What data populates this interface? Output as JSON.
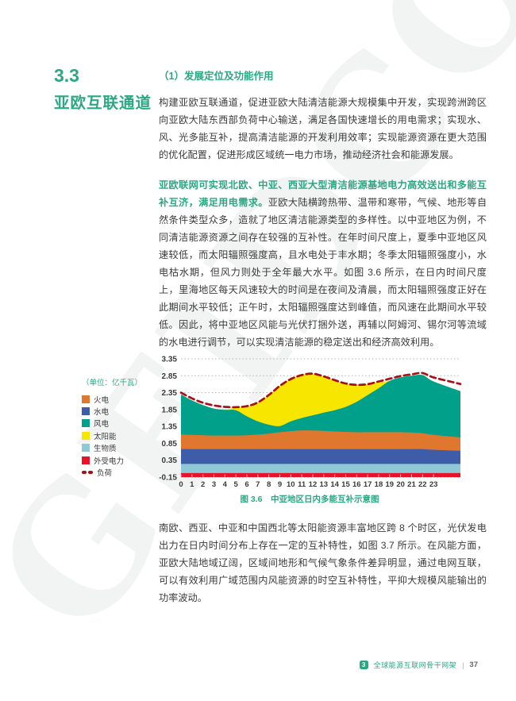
{
  "page": {
    "section_number": "3.3",
    "section_title": "亚欧互联通道",
    "subsection_heading": "（1）发展定位及功能作用",
    "paragraph1": "构建亚欧互联通道，促进亚欧大陆清洁能源大规模集中开发，实现跨洲跨区向亚欧大陆东西部负荷中心输送，满足各国快速增长的用电需求；实现水、风、光多能互补，提高清洁能源的开发利用效率；实现能源资源在更大范围的优化配置，促进形成区域统一电力市场，推动经济社会和能源发展。",
    "paragraph2_lead": "亚欧联网可实现北欧、中亚、西亚大型清洁能源基地电力高效送出和多能互补互济，满足用电需求。",
    "paragraph2_rest": "亚欧大陆横跨热带、温带和寒带，气候、地形等自然条件类型众多，造就了地区清洁能源类型的多样性。以中亚地区为例，不同清洁能源资源之间存在较强的互补性。在年时间尺度上，夏季中亚地区风速较低，而太阳辐照强度高，且水电处于丰水期；冬季太阳辐照强度小，水电枯水期，但风力则处于全年最大水平。如图 3.6 所示，在日内时间尺度上，里海地区每天风速较大的时间是在夜间及清晨，而太阳辐照强度正好在此期间水平较低；正午时，太阳辐照强度达到峰值，而风速在此期间水平较低。因此，将中亚地区风能与光伏打捆外送，再辅以阿姆河、锡尔河等流域的水电进行调节，可以实现清洁能源的稳定送出和经济高效利用。",
    "paragraph3": "南欧、西亚、中亚和中国西北等太阳能资源丰富地区跨 8 个时区，光伏发电出力在日内时间分布上存在一定的互补特性，如图 3.7 所示。在风能方面，亚欧大陆地域辽阔，区域间地形和气候气象条件差异明显，通过电网互联，可以有效利用广域范围内风能资源的时空互补特性，平抑大规模风能输出的功率波动。",
    "watermark": "GEIDCO",
    "accent_color": "#2BA883"
  },
  "footer": {
    "chapter_badge": "3",
    "book_title": "全球能源互联网骨干网架",
    "separator": "|",
    "page_number": "37"
  },
  "chart_data": {
    "type": "area",
    "subtype": "stacked-area with dashed load line",
    "title": "图 3.6　中亚地区日内多能互补示意图",
    "unit_label": "（单位：亿千瓦）",
    "x": [
      0,
      1,
      2,
      3,
      4,
      5,
      6,
      7,
      8,
      9,
      10,
      11,
      12,
      13,
      14,
      15,
      16,
      17,
      18,
      19,
      20,
      21,
      22,
      23
    ],
    "xlabel": "",
    "ylabel": "亿千瓦",
    "ylim": [
      -0.15,
      3.35
    ],
    "yticks": [
      3.35,
      2.85,
      2.35,
      1.85,
      1.35,
      0.85,
      0.35,
      -0.15
    ],
    "grid": "dotted horizontal gridlines",
    "legend_position": "left",
    "stack_order_bottom_to_top": [
      "外受电力",
      "生物质",
      "水电",
      "火电",
      "风电",
      "太阳能"
    ],
    "series": [
      {
        "name": "外受电力",
        "color": "#E8132B",
        "values": [
          0.12,
          0.12,
          0.12,
          0.12,
          0.12,
          0.12,
          0.12,
          0.12,
          0.12,
          0.12,
          0.12,
          0.12,
          0.12,
          0.12,
          0.12,
          0.12,
          0.12,
          0.12,
          0.12,
          0.12,
          0.12,
          0.12,
          0.12,
          0.12
        ]
      },
      {
        "name": "生物质",
        "color": "#8FC9D5",
        "values": [
          0.27,
          0.27,
          0.27,
          0.27,
          0.27,
          0.27,
          0.27,
          0.27,
          0.27,
          0.27,
          0.27,
          0.27,
          0.27,
          0.27,
          0.27,
          0.27,
          0.27,
          0.27,
          0.27,
          0.27,
          0.27,
          0.27,
          0.27,
          0.27
        ]
      },
      {
        "name": "水电",
        "color": "#3D5DA9",
        "values": [
          0.44,
          0.44,
          0.44,
          0.44,
          0.44,
          0.44,
          0.44,
          0.44,
          0.44,
          0.44,
          0.44,
          0.44,
          0.44,
          0.44,
          0.44,
          0.44,
          0.44,
          0.44,
          0.44,
          0.44,
          0.44,
          0.44,
          0.44,
          0.42
        ]
      },
      {
        "name": "火电",
        "color": "#E0772F",
        "values": [
          0.43,
          0.42,
          0.41,
          0.4,
          0.4,
          0.4,
          0.41,
          0.43,
          0.46,
          0.5,
          0.53,
          0.55,
          0.55,
          0.54,
          0.52,
          0.51,
          0.5,
          0.5,
          0.5,
          0.5,
          0.5,
          0.49,
          0.47,
          0.44
        ]
      },
      {
        "name": "风电",
        "color": "#00A08B",
        "values": [
          1.19,
          1.02,
          0.89,
          0.8,
          0.76,
          0.75,
          0.56,
          0.39,
          0.26,
          0.18,
          0.29,
          0.37,
          0.45,
          0.54,
          0.63,
          0.74,
          0.9,
          1.1,
          1.3,
          1.52,
          1.62,
          1.68,
          1.72,
          1.58
        ]
      },
      {
        "name": "太阳能",
        "color": "#F7E600",
        "values": [
          0,
          0,
          0,
          0,
          0,
          0.09,
          0.3,
          0.56,
          0.88,
          1.19,
          1.25,
          1.27,
          1.23,
          1.07,
          0.89,
          0.69,
          0.5,
          0.32,
          0.18,
          0,
          0,
          0,
          0,
          0
        ]
      }
    ],
    "load_line": {
      "name": "负荷",
      "color": "#A91016",
      "style": "dashed",
      "values": [
        2.35,
        2.18,
        2.05,
        1.97,
        1.93,
        1.92,
        1.95,
        2.06,
        2.28,
        2.55,
        2.75,
        2.87,
        2.91,
        2.83,
        2.72,
        2.62,
        2.58,
        2.6,
        2.68,
        2.76,
        2.84,
        2.89,
        2.93,
        2.8
      ]
    },
    "legend": [
      {
        "label": "火电",
        "color": "#E0772F",
        "swatch": "square"
      },
      {
        "label": "水电",
        "color": "#3D5DA9",
        "swatch": "square"
      },
      {
        "label": "风电",
        "color": "#00A08B",
        "swatch": "square"
      },
      {
        "label": "太阳能",
        "color": "#F7E600",
        "swatch": "square"
      },
      {
        "label": "生物质",
        "color": "#8FC9D5",
        "swatch": "square"
      },
      {
        "label": "外受电力",
        "color": "#E8132B",
        "swatch": "square"
      },
      {
        "label": "负荷",
        "color": "#A91016",
        "swatch": "dashes"
      }
    ]
  }
}
